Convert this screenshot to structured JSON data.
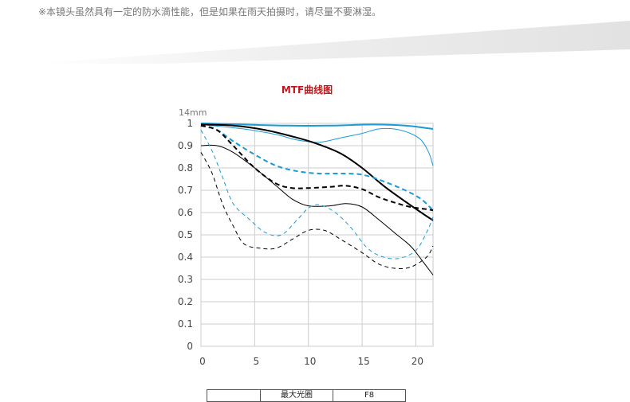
{
  "note": "※本镜头虽然具有一定的防水滴性能，但是如果在雨天拍摄时，请尽量不要淋湿。",
  "chart_title": "MTF曲线图",
  "focal_label": "14mm",
  "table": {
    "headers": [
      "",
      "最大光圈",
      "F8"
    ]
  },
  "chart_data": {
    "type": "line",
    "title": "MTF曲线图",
    "xlim": [
      0,
      21.6
    ],
    "ylim": [
      0,
      1
    ],
    "x_ticks": [
      0,
      5,
      10,
      15,
      20
    ],
    "y_ticks": [
      0,
      0.1,
      0.2,
      0.3,
      0.4,
      0.5,
      0.6,
      0.7,
      0.8,
      0.9,
      1
    ],
    "y_tick_labels": [
      "0",
      "0.1",
      "0.2",
      "0.3",
      "0.4",
      "0.5",
      "0.6",
      "0.7",
      "0.8",
      "0.9",
      "1"
    ],
    "grid": true,
    "series": [
      {
        "color": "#1a9ad6",
        "weight": "thick",
        "dash": "solid",
        "points": [
          [
            0,
            1.0
          ],
          [
            4,
            0.995
          ],
          [
            8,
            0.99
          ],
          [
            12,
            0.99
          ],
          [
            16,
            0.995
          ],
          [
            19,
            0.99
          ],
          [
            21.6,
            0.975
          ]
        ]
      },
      {
        "color": "#1a9ad6",
        "weight": "thin",
        "dash": "solid",
        "points": [
          [
            0,
            0.995
          ],
          [
            4,
            0.975
          ],
          [
            7,
            0.95
          ],
          [
            9,
            0.925
          ],
          [
            11,
            0.915
          ],
          [
            13,
            0.935
          ],
          [
            15,
            0.955
          ],
          [
            16.5,
            0.975
          ],
          [
            18,
            0.975
          ],
          [
            19.5,
            0.955
          ],
          [
            20.5,
            0.925
          ],
          [
            21.2,
            0.87
          ],
          [
            21.6,
            0.81
          ]
        ]
      },
      {
        "color": "#000000",
        "weight": "thick",
        "dash": "solid",
        "points": [
          [
            0,
            0.995
          ],
          [
            3,
            0.99
          ],
          [
            6,
            0.97
          ],
          [
            9,
            0.935
          ],
          [
            11,
            0.905
          ],
          [
            13,
            0.865
          ],
          [
            15,
            0.8
          ],
          [
            17,
            0.72
          ],
          [
            19,
            0.65
          ],
          [
            20.5,
            0.6
          ],
          [
            21.6,
            0.565
          ]
        ]
      },
      {
        "color": "#000000",
        "weight": "thin",
        "dash": "solid",
        "points": [
          [
            0,
            0.9
          ],
          [
            1.5,
            0.9
          ],
          [
            3,
            0.87
          ],
          [
            5,
            0.8
          ],
          [
            7,
            0.72
          ],
          [
            8.5,
            0.66
          ],
          [
            10,
            0.63
          ],
          [
            12,
            0.63
          ],
          [
            13.5,
            0.64
          ],
          [
            15,
            0.625
          ],
          [
            16.5,
            0.57
          ],
          [
            18,
            0.51
          ],
          [
            19.5,
            0.45
          ],
          [
            20.5,
            0.39
          ],
          [
            21.6,
            0.32
          ]
        ]
      },
      {
        "color": "#1a9ad6",
        "weight": "thick",
        "dash": "dashed",
        "points": [
          [
            0,
            0.99
          ],
          [
            1.5,
            0.97
          ],
          [
            3,
            0.92
          ],
          [
            5,
            0.86
          ],
          [
            7,
            0.81
          ],
          [
            9,
            0.785
          ],
          [
            11,
            0.775
          ],
          [
            13,
            0.775
          ],
          [
            15,
            0.77
          ],
          [
            17,
            0.74
          ],
          [
            19,
            0.7
          ],
          [
            20.5,
            0.66
          ],
          [
            21.6,
            0.61
          ]
        ]
      },
      {
        "color": "#000000",
        "weight": "thick",
        "dash": "dashed",
        "points": [
          [
            0,
            0.99
          ],
          [
            1.5,
            0.97
          ],
          [
            3,
            0.9
          ],
          [
            5,
            0.8
          ],
          [
            7,
            0.73
          ],
          [
            8.5,
            0.71
          ],
          [
            10,
            0.71
          ],
          [
            12,
            0.715
          ],
          [
            13.5,
            0.72
          ],
          [
            15,
            0.705
          ],
          [
            16.5,
            0.67
          ],
          [
            18,
            0.645
          ],
          [
            19.5,
            0.625
          ],
          [
            21,
            0.615
          ],
          [
            21.6,
            0.61
          ]
        ]
      },
      {
        "color": "#1a9ad6",
        "weight": "thin",
        "dash": "dashed",
        "points": [
          [
            0,
            0.97
          ],
          [
            1,
            0.88
          ],
          [
            2,
            0.76
          ],
          [
            3,
            0.64
          ],
          [
            4.5,
            0.57
          ],
          [
            6,
            0.51
          ],
          [
            7.5,
            0.5
          ],
          [
            9,
            0.57
          ],
          [
            10,
            0.62
          ],
          [
            11,
            0.635
          ],
          [
            12.5,
            0.6
          ],
          [
            14,
            0.53
          ],
          [
            15.5,
            0.44
          ],
          [
            17,
            0.4
          ],
          [
            18.5,
            0.395
          ],
          [
            20,
            0.43
          ],
          [
            21,
            0.51
          ],
          [
            21.6,
            0.58
          ]
        ]
      },
      {
        "color": "#000000",
        "weight": "thin",
        "dash": "dashed",
        "points": [
          [
            0,
            0.87
          ],
          [
            1,
            0.78
          ],
          [
            2,
            0.64
          ],
          [
            3,
            0.54
          ],
          [
            4,
            0.46
          ],
          [
            5.5,
            0.44
          ],
          [
            7,
            0.44
          ],
          [
            8.5,
            0.48
          ],
          [
            10,
            0.52
          ],
          [
            11.5,
            0.52
          ],
          [
            13,
            0.48
          ],
          [
            15,
            0.42
          ],
          [
            16.5,
            0.37
          ],
          [
            18,
            0.35
          ],
          [
            19.5,
            0.355
          ],
          [
            21,
            0.4
          ],
          [
            21.6,
            0.45
          ]
        ]
      }
    ]
  }
}
